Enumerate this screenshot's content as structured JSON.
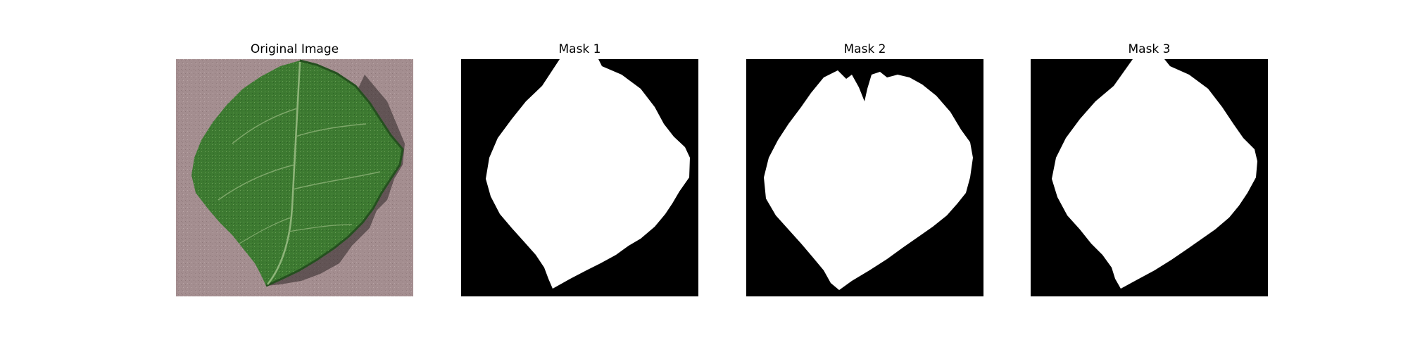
{
  "panels": [
    {
      "title": "Original Image"
    },
    {
      "title": "Mask 1"
    },
    {
      "title": "Mask 2"
    },
    {
      "title": "Mask 3"
    }
  ],
  "colors": {
    "background": "#ffffff",
    "mask_background": "#000000",
    "mask_foreground": "#ffffff",
    "leaf_green": "#3f7a33",
    "leaf_dark": "#2b5a26",
    "leaf_vein": "#8fb57a",
    "surface": "#a38d8f"
  },
  "icons": {
    "leaf_photo": "leaf-photo",
    "mask_shape": "leaf-mask-silhouette"
  }
}
